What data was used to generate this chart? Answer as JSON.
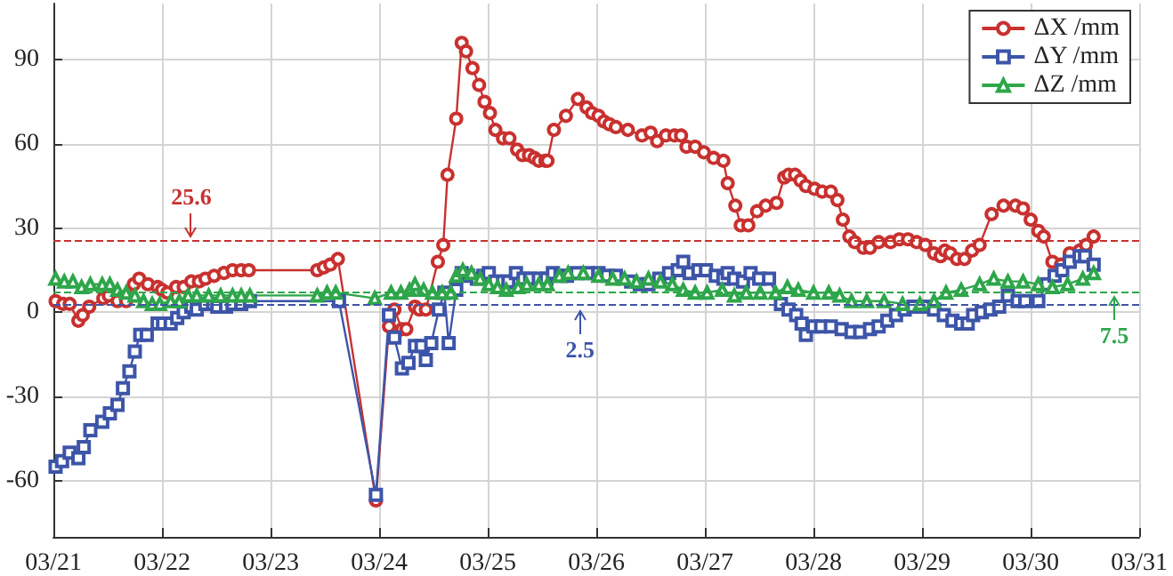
{
  "chart_data": {
    "type": "line",
    "xlim": [
      "--03-21",
      "--03-31"
    ],
    "xticks": [
      {
        "value": "--03-21",
        "label": "03/21"
      },
      {
        "value": "--03-22",
        "label": "03/22"
      },
      {
        "value": "--03-23",
        "label": "03/23"
      },
      {
        "value": "--03-24",
        "label": "03/24"
      },
      {
        "value": "--03-25",
        "label": "03/25"
      },
      {
        "value": "--03-26",
        "label": "03/26"
      },
      {
        "value": "--03-27",
        "label": "03/27"
      },
      {
        "value": "--03-28",
        "label": "03/28"
      },
      {
        "value": "--03-29",
        "label": "03/29"
      },
      {
        "value": "--03-30",
        "label": "03/30"
      },
      {
        "value": "--03-31",
        "label": "03/31"
      }
    ],
    "ylim": [
      -80,
      110
    ],
    "yticks": [
      -60,
      -30,
      0,
      30,
      60,
      90
    ],
    "grid": true,
    "legend": "top right",
    "line_style": "solid",
    "series": [
      {
        "name": "ΔX /mm",
        "color": "#c8312f",
        "marker": "circle",
        "x": [
          "--03-21T00:29",
          "--03-21T02:10",
          "--03-21T03:36",
          "--03-21T05:31",
          "--03-21T06:29",
          "--03-21T07:55",
          "--03-21T11:02",
          "--03-21T12:14",
          "--03-21T14:10",
          "--03-21T16:05",
          "--03-21T17:46",
          "--03-21T18:58",
          "--03-21T20:53",
          "--03-21T23:02",
          "--03-22T00:00",
          "--03-22T01:12",
          "--03-22T03:07",
          "--03-22T04:48",
          "--03-22T06:29",
          "--03-22T08:10",
          "--03-22T09:36",
          "--03-22T11:31",
          "--03-22T13:41",
          "--03-22T15:36",
          "--03-22T17:31",
          "--03-22T19:12",
          "--03-23T10:19",
          "--03-23T11:46",
          "--03-23T13:12",
          "--03-23T14:53",
          "--03-23T23:17",
          "--03-24T02:10",
          "--03-24T03:22",
          "--03-24T05:02",
          "--03-24T06:00",
          "--03-24T07:55",
          "--03-24T08:53",
          "--03-24T10:19",
          "--03-24T12:58",
          "--03-24T14:10",
          "--03-24T15:07",
          "--03-24T17:02",
          "--03-24T18:14",
          "--03-24T19:12",
          "--03-24T20:38",
          "--03-24T22:05",
          "--03-24T23:17",
          "--03-25T00:29",
          "--03-25T01:41",
          "--03-25T03:22",
          "--03-25T04:48",
          "--03-25T06:29",
          "--03-25T07:41",
          "--03-25T09:07",
          "--03-25T10:19",
          "--03-25T11:17",
          "--03-25T12:43",
          "--03-25T13:12",
          "--03-25T14:38",
          "--03-25T17:17",
          "--03-25T19:55",
          "--03-25T21:50",
          "--03-25T23:02",
          "--03-26T00:29",
          "--03-26T01:41",
          "--03-26T02:53",
          "--03-26T04:19",
          "--03-26T06:58",
          "--03-26T10:05",
          "--03-26T12:00",
          "--03-26T13:26",
          "--03-26T15:22",
          "--03-26T17:17",
          "--03-26T18:43",
          "--03-26T19:55",
          "--03-26T21:50",
          "--03-26T23:46",
          "--03-27T01:55",
          "--03-27T04:05",
          "--03-27T05:02",
          "--03-27T06:43",
          "--03-27T07:55",
          "--03-27T09:36",
          "--03-27T11:31",
          "--03-27T13:26",
          "--03-27T15:50",
          "--03-27T17:31",
          "--03-27T18:29",
          "--03-27T19:55",
          "--03-27T21:07",
          "--03-27T22:19",
          "--03-28T00:14",
          "--03-28T01:55",
          "--03-28T03:50",
          "--03-28T05:17",
          "--03-28T06:29",
          "--03-28T07:55",
          "--03-28T09:07",
          "--03-28T11:02",
          "--03-28T12:29",
          "--03-28T14:24",
          "--03-28T17:02",
          "--03-28T18:58",
          "--03-28T20:53",
          "--03-28T22:48",
          "--03-29T00:43",
          "--03-29T02:38",
          "--03-29T04:05",
          "--03-29T05:02",
          "--03-29T06:14",
          "--03-29T07:41",
          "--03-29T09:22",
          "--03-29T11:02",
          "--03-29T12:43",
          "--03-29T15:22",
          "--03-29T18:00",
          "--03-29T20:38",
          "--03-29T22:19",
          "--03-30T00:00",
          "--03-30T01:41",
          "--03-30T02:53",
          "--03-30T04:48",
          "--03-30T06:43",
          "--03-30T08:38",
          "--03-30T10:48",
          "--03-30T12:14",
          "--03-30T13:55"
        ],
        "values": [
          4,
          3,
          3,
          -3,
          -1,
          2,
          5,
          6,
          4,
          4,
          10,
          12,
          10,
          9,
          8,
          7,
          9,
          9,
          11,
          11,
          12,
          13,
          14,
          15,
          15,
          15,
          15,
          16,
          17,
          19,
          -67,
          -5,
          1,
          -6,
          -6,
          2,
          1,
          1,
          18,
          24,
          49,
          69,
          96,
          93,
          87,
          81,
          75,
          71,
          65,
          62,
          62,
          58,
          56,
          56,
          55,
          54,
          54,
          54,
          65,
          70,
          76,
          73,
          71,
          70,
          68,
          67,
          66,
          65,
          63,
          64,
          61,
          63,
          63,
          63,
          59,
          59,
          57,
          55,
          54,
          46,
          38,
          31,
          31,
          36,
          38,
          39,
          48,
          49,
          49,
          47,
          45,
          44,
          43,
          43,
          40,
          33,
          27,
          25,
          23,
          23,
          25,
          25,
          26,
          26,
          25,
          24,
          21,
          20,
          22,
          21,
          19,
          19,
          22,
          24,
          35,
          38,
          38,
          37,
          33,
          29,
          27,
          18,
          17,
          21,
          22,
          24,
          27
        ]
      },
      {
        "name": "ΔY /mm",
        "color": "#3d55a8",
        "marker": "square",
        "x": [
          "--03-21T00:29",
          "--03-21T01:55",
          "--03-21T03:36",
          "--03-21T05:31",
          "--03-21T06:43",
          "--03-21T08:10",
          "--03-21T10:48",
          "--03-21T12:29",
          "--03-21T14:10",
          "--03-21T15:22",
          "--03-21T16:48",
          "--03-21T18:00",
          "--03-21T19:12",
          "--03-21T20:38",
          "--03-21T23:02",
          "--03-22T00:14",
          "--03-22T01:55",
          "--03-22T03:22",
          "--03-22T04:48",
          "--03-22T06:29",
          "--03-22T07:41",
          "--03-22T09:36",
          "--03-22T11:17",
          "--03-22T12:14",
          "--03-22T14:10",
          "--03-22T15:36",
          "--03-22T17:31",
          "--03-22T19:26",
          "--03-23T15:07",
          "--03-23T23:17",
          "--03-24T02:10",
          "--03-24T03:22",
          "--03-24T05:02",
          "--03-24T06:29",
          "--03-24T07:55",
          "--03-24T09:22",
          "--03-24T10:19",
          "--03-24T11:31",
          "--03-24T13:12",
          "--03-24T14:24",
          "--03-24T15:22",
          "--03-24T17:02",
          "--03-24T18:14",
          "--03-24T19:41",
          "--03-24T21:36",
          "--03-24T23:02",
          "--03-25T00:14",
          "--03-25T01:41",
          "--03-25T03:22",
          "--03-25T04:34",
          "--03-25T06:14",
          "--03-25T07:55",
          "--03-25T09:22",
          "--03-25T11:17",
          "--03-25T12:58",
          "--03-25T14:24",
          "--03-25T16:05",
          "--03-25T17:31",
          "--03-25T19:41",
          "--03-25T22:05",
          "--03-26T00:29",
          "--03-26T02:24",
          "--03-26T04:19",
          "--03-26T07:41",
          "--03-26T09:36",
          "--03-26T11:31",
          "--03-26T13:55",
          "--03-26T16:05",
          "--03-26T18:00",
          "--03-26T19:12",
          "--03-26T20:38",
          "--03-26T22:34",
          "--03-27T00:14",
          "--03-27T02:24",
          "--03-27T04:05",
          "--03-27T05:02",
          "--03-27T06:29",
          "--03-27T08:24",
          "--03-27T10:05",
          "--03-27T12:00",
          "--03-27T14:10",
          "--03-27T16:48",
          "--03-27T18:29",
          "--03-27T20:10",
          "--03-27T21:22",
          "--03-27T22:19",
          "--03-28T00:00",
          "--03-28T01:41",
          "--03-28T03:50",
          "--03-28T06:14",
          "--03-28T08:24",
          "--03-28T10:19",
          "--03-28T12:29",
          "--03-28T14:24",
          "--03-28T16:19",
          "--03-28T18:14",
          "--03-28T20:10",
          "--03-28T22:05",
          "--03-29T00:43",
          "--03-29T02:38",
          "--03-29T04:48",
          "--03-29T06:43",
          "--03-29T08:38",
          "--03-29T10:05",
          "--03-29T11:17",
          "--03-29T13:12",
          "--03-29T15:07",
          "--03-29T17:02",
          "--03-29T18:58",
          "--03-29T21:07",
          "--03-29T22:48",
          "--03-30T01:41",
          "--03-30T03:36",
          "--03-30T05:17",
          "--03-30T06:58",
          "--03-30T08:38",
          "--03-30T10:48",
          "--03-30T12:00",
          "--03-30T13:55"
        ],
        "values": [
          -55,
          -53,
          -50,
          -52,
          -48,
          -42,
          -39,
          -36,
          -33,
          -27,
          -21,
          -14,
          -8,
          -8,
          -4,
          -4,
          -4,
          -2,
          0,
          2,
          1,
          3,
          3,
          2,
          2,
          3,
          3,
          4,
          4,
          -65,
          -1,
          -9,
          -20,
          -18,
          -12,
          -12,
          -17,
          -11,
          1,
          7,
          -11,
          8,
          14,
          13,
          12,
          13,
          14,
          11,
          11,
          11,
          14,
          12,
          12,
          12,
          12,
          14,
          13,
          13,
          14,
          14,
          14,
          13,
          13,
          11,
          10,
          10,
          12,
          14,
          15,
          18,
          14,
          15,
          15,
          13,
          12,
          14,
          12,
          11,
          14,
          12,
          12,
          3,
          1,
          -1,
          -4,
          -8,
          -5,
          -5,
          -5,
          -6,
          -7,
          -7,
          -6,
          -5,
          -3,
          -1,
          1,
          2,
          2,
          1,
          -1,
          -3,
          -4,
          -4,
          -1,
          0,
          1,
          2,
          6,
          4,
          4,
          4,
          10,
          13,
          15,
          18,
          20,
          20,
          17
        ]
      },
      {
        "name": "ΔZ /mm",
        "color": "#2ea64a",
        "marker": "triangle",
        "x": [
          "--03-21T00:29",
          "--03-21T02:24",
          "--03-21T04:19",
          "--03-21T06:14",
          "--03-21T08:10",
          "--03-21T10:48",
          "--03-21T12:29",
          "--03-21T14:10",
          "--03-21T16:05",
          "--03-21T18:00",
          "--03-21T19:55",
          "--03-21T21:50",
          "--03-21T23:31",
          "--03-22T01:55",
          "--03-22T03:50",
          "--03-22T05:46",
          "--03-22T07:41",
          "--03-22T10:19",
          "--03-22T12:58",
          "--03-22T15:36",
          "--03-22T17:31",
          "--03-22T19:26",
          "--03-23T10:19",
          "--03-23T12:29",
          "--03-23T14:24",
          "--03-23T23:02",
          "--03-24T02:38",
          "--03-24T04:48",
          "--03-24T06:43",
          "--03-24T07:55",
          "--03-24T09:50",
          "--03-24T11:46",
          "--03-24T13:55",
          "--03-24T15:50",
          "--03-24T17:02",
          "--03-24T18:29",
          "--03-24T20:24",
          "--03-24T22:19",
          "--03-25T00:14",
          "--03-25T02:10",
          "--03-25T04:05",
          "--03-25T06:43",
          "--03-25T08:38",
          "--03-25T11:17",
          "--03-25T13:12",
          "--03-25T15:50",
          "--03-25T17:46",
          "--03-25T21:07",
          "--03-26T00:29",
          "--03-26T03:36",
          "--03-26T06:14",
          "--03-26T08:53",
          "--03-26T11:31",
          "--03-26T14:10",
          "--03-26T16:48",
          "--03-26T19:12",
          "--03-26T21:50",
          "--03-27T00:29",
          "--03-27T03:50",
          "--03-27T06:29",
          "--03-27T09:07",
          "--03-27T12:14",
          "--03-27T15:36",
          "--03-27T18:14",
          "--03-27T20:38",
          "--03-28T00:00",
          "--03-28T03:22",
          "--03-28T05:46",
          "--03-28T08:24",
          "--03-28T11:46",
          "--03-28T15:36",
          "--03-28T19:41",
          "--03-28T23:31",
          "--03-29T02:38",
          "--03-29T05:17",
          "--03-29T08:38",
          "--03-29T12:43",
          "--03-29T15:50",
          "--03-29T18:58",
          "--03-29T22:19",
          "--03-30T01:41",
          "--03-30T04:48",
          "--03-30T08:10",
          "--03-30T11:31",
          "--03-30T13:55"
        ],
        "values": [
          12,
          11,
          11,
          9,
          10,
          10,
          10,
          8,
          7,
          6,
          4,
          3,
          3,
          4,
          4,
          6,
          6,
          6,
          6,
          6,
          6,
          6,
          6,
          7,
          7,
          5,
          7,
          7,
          8,
          10,
          8,
          7,
          7,
          7,
          13,
          15,
          14,
          12,
          10,
          9,
          8,
          9,
          10,
          10,
          10,
          13,
          14,
          14,
          13,
          12,
          12,
          11,
          12,
          11,
          10,
          8,
          7,
          7,
          8,
          6,
          7,
          7,
          7,
          9,
          8,
          7,
          7,
          6,
          4,
          4,
          4,
          3,
          3,
          4,
          7,
          8,
          10,
          12,
          11,
          11,
          10,
          9,
          10,
          12,
          14
        ]
      }
    ],
    "ref_lines": [
      {
        "axis": "y",
        "value": 25.6,
        "color": "#c8312f",
        "line_style": "dashed"
      },
      {
        "axis": "y",
        "value": 2.5,
        "color": "#3d55a8",
        "line_style": "dashed"
      },
      {
        "axis": "y",
        "value": 7.5,
        "color": "#2ea64a",
        "line_style": "dashed"
      }
    ],
    "annotations": [
      {
        "text": "25.6",
        "x": "--03-22T06:29",
        "y": 25.6
      },
      {
        "text": "2.5",
        "x": "--03-25T20:24",
        "y": 2.5
      },
      {
        "text": "7.5",
        "x": "--03-30T18:29",
        "y": 7.5
      }
    ]
  }
}
